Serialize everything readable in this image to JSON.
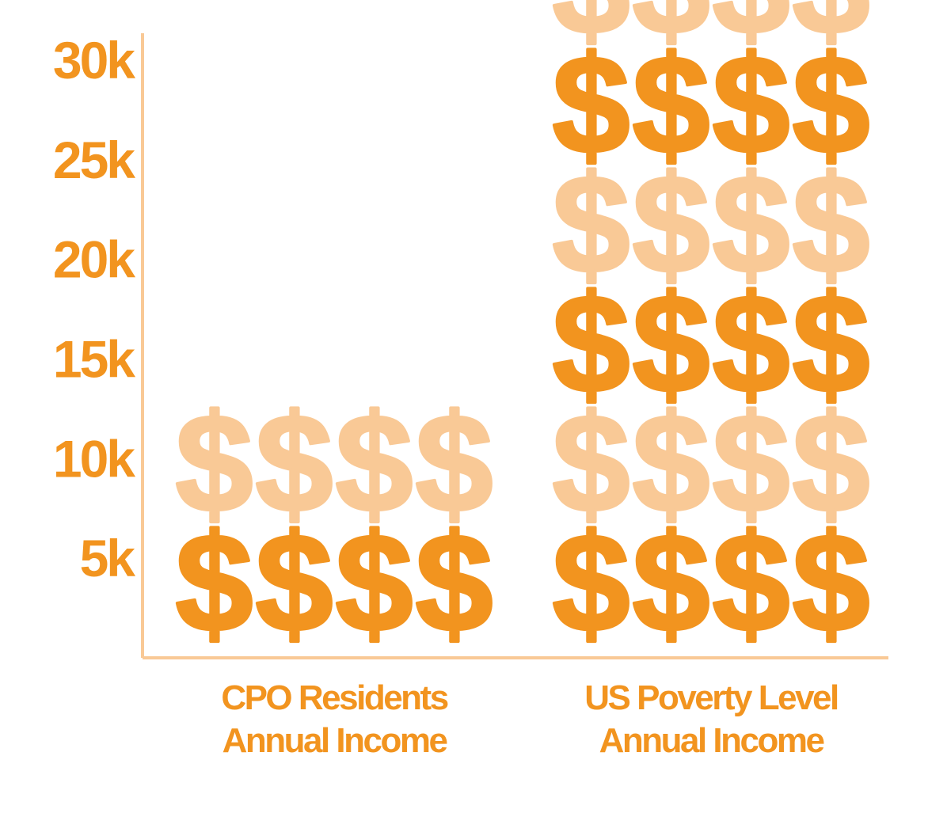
{
  "chart_data": {
    "type": "bar",
    "style": "pictogram",
    "icon": "dollar-sign-icon",
    "symbol": "$",
    "icons_per_row": 4,
    "units_per_row": 5000,
    "categories": [
      {
        "line1": "CPO Residents",
        "line2": "Annual Income"
      },
      {
        "line1": "US Poverty Level",
        "line2": "Annual Income"
      }
    ],
    "values": [
      10000,
      30000
    ],
    "y_ticks": [
      {
        "value": 5000,
        "label": "5k"
      },
      {
        "value": 10000,
        "label": "10k"
      },
      {
        "value": 15000,
        "label": "15k"
      },
      {
        "value": 20000,
        "label": "20k"
      },
      {
        "value": 25000,
        "label": "25k"
      },
      {
        "value": 30000,
        "label": "30k"
      }
    ],
    "ylim": [
      0,
      30000
    ],
    "grid": false,
    "legend": "none"
  },
  "colors": {
    "primary": "#F2941F",
    "light": "#F9C996",
    "axis": "#F9C996",
    "labels": "#F2941F"
  }
}
